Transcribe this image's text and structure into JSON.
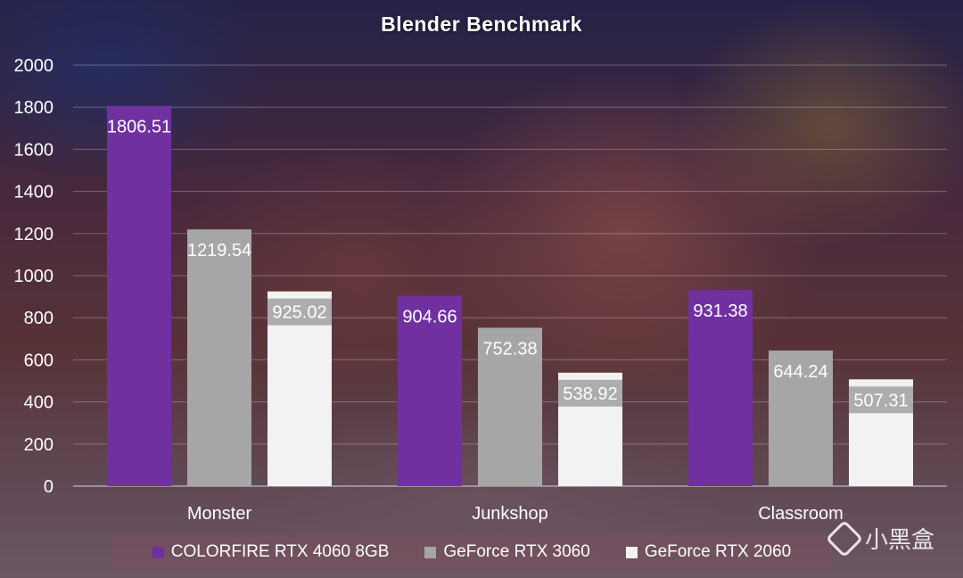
{
  "chart_data": {
    "type": "bar",
    "title": "Blender Benchmark",
    "categories": [
      "Monster",
      "Junkshop",
      "Classroom"
    ],
    "series": [
      {
        "name": "COLORFIRE RTX 4060 8GB",
        "values": [
          1806.51,
          904.66,
          931.38
        ],
        "color": "#7030a0"
      },
      {
        "name": "GeForce RTX 3060",
        "values": [
          1219.54,
          752.38,
          644.24
        ],
        "color": "#a6a6a6"
      },
      {
        "name": "GeForce RTX 2060",
        "values": [
          925.02,
          538.92,
          507.31
        ],
        "color": "#f2f2f2"
      }
    ],
    "value_labels": [
      [
        "1806.51",
        "904.66",
        "931.38"
      ],
      [
        "1219.54",
        "752.38",
        "644.24"
      ],
      [
        "925.02",
        "538.92",
        "507.31"
      ]
    ],
    "ylim": [
      0,
      2000
    ],
    "yticks": [
      "0",
      "200",
      "400",
      "600",
      "800",
      "1000",
      "1200",
      "1400",
      "1600",
      "1800",
      "2000"
    ],
    "grid": true,
    "legend_position": "bottom"
  },
  "watermark": {
    "text": "小黑盒",
    "icon": "heybox-logo-icon"
  }
}
